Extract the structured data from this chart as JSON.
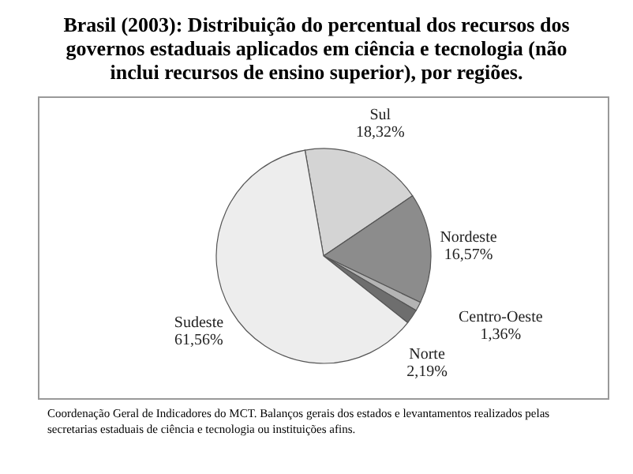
{
  "chart_data": {
    "type": "pie",
    "title": "Brasil (2003): Distribuição do percentual dos recursos dos governos estaduais aplicados em ciência e tecnologia (não inclui recursos de ensino superior), por regiões.",
    "categories": [
      "Sul",
      "Nordeste",
      "Centro-Oeste",
      "Norte",
      "Sudeste"
    ],
    "values": [
      18.32,
      16.57,
      1.36,
      2.19,
      61.56
    ],
    "value_labels": [
      "18,32%",
      "16,57%",
      "1,36%",
      "2,19%",
      "61,56%"
    ],
    "colors": [
      "#d4d4d4",
      "#8c8c8c",
      "#b4b4b4",
      "#6e6e6e",
      "#ededed"
    ],
    "annotations": [
      "Coordenação Geral de Indicadores do MCT. Balanços gerais dos estados e levantamentos realizados pelas secretarias estaduais de ciência e tecnologia ou instituições afins."
    ],
    "legend": false
  }
}
